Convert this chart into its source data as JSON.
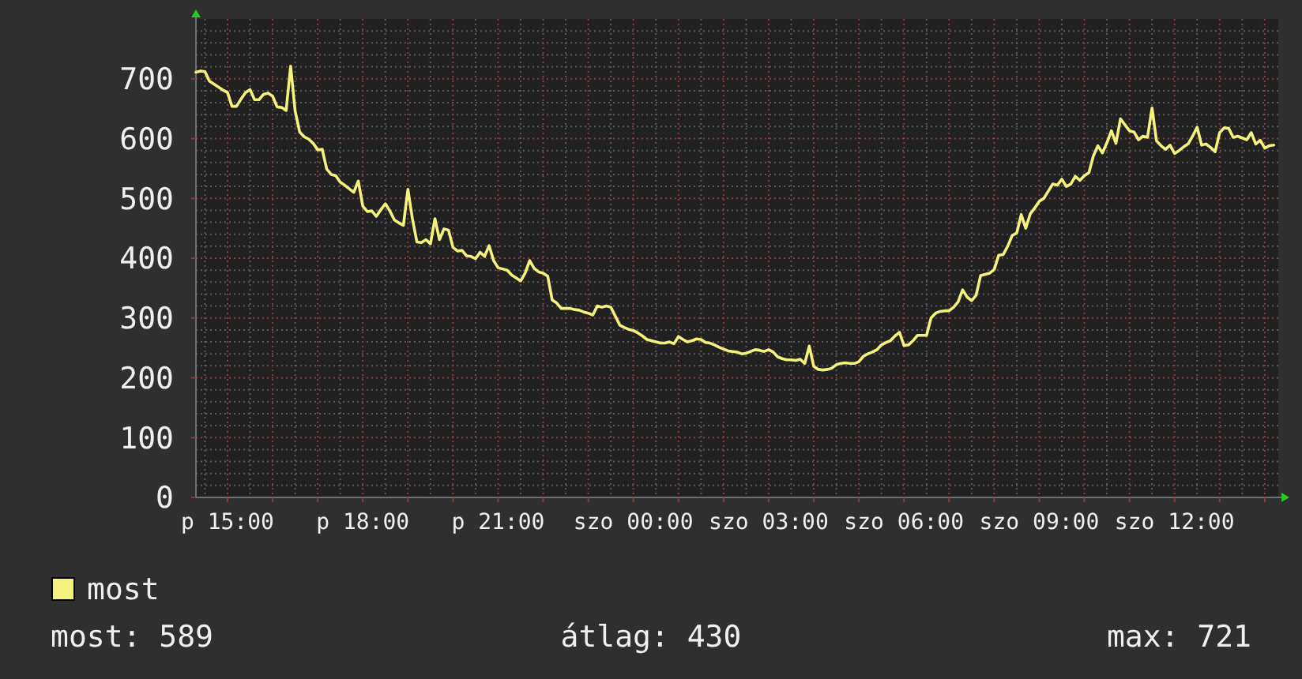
{
  "chart_data": {
    "type": "line",
    "categories": [
      null,
      null,
      null,
      null,
      null,
      null,
      null,
      "p 15:00",
      null,
      null,
      null,
      null,
      null,
      null,
      null,
      null,
      null,
      null,
      null,
      null,
      null,
      null,
      null,
      null,
      null,
      null,
      null,
      null,
      null,
      null,
      null,
      null,
      null,
      null,
      null,
      null,
      null,
      "p 18:00",
      null,
      null,
      null,
      null,
      null,
      null,
      null,
      null,
      null,
      null,
      null,
      null,
      null,
      null,
      null,
      null,
      null,
      null,
      null,
      null,
      null,
      null,
      null,
      null,
      null,
      null,
      null,
      null,
      null,
      "p 21:00",
      null,
      null,
      null,
      null,
      null,
      null,
      null,
      null,
      null,
      null,
      null,
      null,
      null,
      null,
      null,
      null,
      null,
      null,
      null,
      null,
      null,
      null,
      null,
      null,
      null,
      null,
      null,
      null,
      null,
      "szo 00:00",
      null,
      null,
      null,
      null,
      null,
      null,
      null,
      null,
      null,
      null,
      null,
      null,
      null,
      null,
      null,
      null,
      null,
      null,
      null,
      null,
      null,
      null,
      null,
      null,
      null,
      null,
      null,
      null,
      null,
      "szo 03:00",
      null,
      null,
      null,
      null,
      null,
      null,
      null,
      null,
      null,
      null,
      null,
      null,
      null,
      null,
      null,
      null,
      null,
      null,
      null,
      null,
      null,
      null,
      null,
      null,
      null,
      null,
      null,
      null,
      null,
      "szo 06:00",
      null,
      null,
      null,
      null,
      null,
      null,
      null,
      null,
      null,
      null,
      null,
      null,
      null,
      null,
      null,
      null,
      null,
      null,
      null,
      null,
      null,
      null,
      null,
      null,
      null,
      null,
      null,
      null,
      null,
      "szo 09:00",
      null,
      null,
      null,
      null,
      null,
      null,
      null,
      null,
      null,
      null,
      null,
      null,
      null,
      null,
      null,
      null,
      null,
      null,
      null,
      null,
      null,
      null,
      null,
      null,
      null,
      null,
      null,
      null,
      null,
      "szo 12:00",
      null,
      null,
      null,
      null,
      null,
      null,
      null,
      null,
      null,
      null,
      null,
      null,
      null,
      null,
      null,
      null,
      null,
      null,
      null,
      null,
      null,
      null,
      null
    ],
    "series": [
      {
        "name": "most",
        "color": "#f4f27c",
        "values": [
          711,
          713,
          712,
          696,
          691,
          686,
          681,
          677,
          654,
          654,
          666,
          677,
          682,
          665,
          665,
          674,
          676,
          671,
          653,
          652,
          647,
          721,
          646,
          611,
          603,
          599,
          592,
          581,
          582,
          549,
          540,
          538,
          527,
          522,
          516,
          510,
          529,
          487,
          478,
          479,
          470,
          481,
          491,
          479,
          464,
          459,
          455,
          515,
          466,
          427,
          426,
          431,
          424,
          466,
          431,
          449,
          447,
          418,
          412,
          413,
          404,
          403,
          399,
          410,
          403,
          421,
          396,
          384,
          382,
          380,
          372,
          367,
          362,
          375,
          396,
          383,
          377,
          375,
          370,
          330,
          325,
          316,
          316,
          316,
          314,
          313,
          310,
          308,
          305,
          320,
          318,
          320,
          318,
          303,
          288,
          284,
          281,
          279,
          275,
          270,
          264,
          262,
          260,
          258,
          258,
          260,
          257,
          269,
          264,
          260,
          262,
          265,
          264,
          259,
          258,
          255,
          251,
          248,
          245,
          244,
          243,
          240,
          241,
          244,
          247,
          246,
          244,
          247,
          243,
          235,
          232,
          230,
          230,
          229,
          231,
          224,
          253,
          219,
          214,
          213,
          214,
          216,
          222,
          224,
          225,
          224,
          224,
          227,
          236,
          240,
          243,
          247,
          255,
          259,
          262,
          270,
          276,
          254,
          255,
          262,
          271,
          271,
          271,
          300,
          308,
          311,
          312,
          312,
          318,
          327,
          347,
          335,
          329,
          338,
          371,
          373,
          375,
          381,
          405,
          406,
          420,
          438,
          442,
          473,
          450,
          474,
          484,
          495,
          500,
          512,
          524,
          522,
          532,
          520,
          524,
          537,
          530,
          538,
          543,
          571,
          588,
          576,
          593,
          613,
          592,
          633,
          623,
          613,
          611,
          598,
          604,
          602,
          651,
          596,
          588,
          582,
          589,
          575,
          580,
          586,
          591,
          604,
          619,
          589,
          591,
          585,
          578,
          610,
          618,
          617,
          602,
          604,
          601,
          598,
          610,
          591,
          597,
          584,
          588,
          589,
          null
        ]
      }
    ],
    "ylim": [
      0,
      800
    ],
    "yticks": [
      0,
      100,
      200,
      300,
      400,
      500,
      600,
      700
    ],
    "grid": true,
    "legend": "bottom",
    "annotations": [
      "most: 589",
      "átlag: 430",
      "max: 721"
    ]
  }
}
